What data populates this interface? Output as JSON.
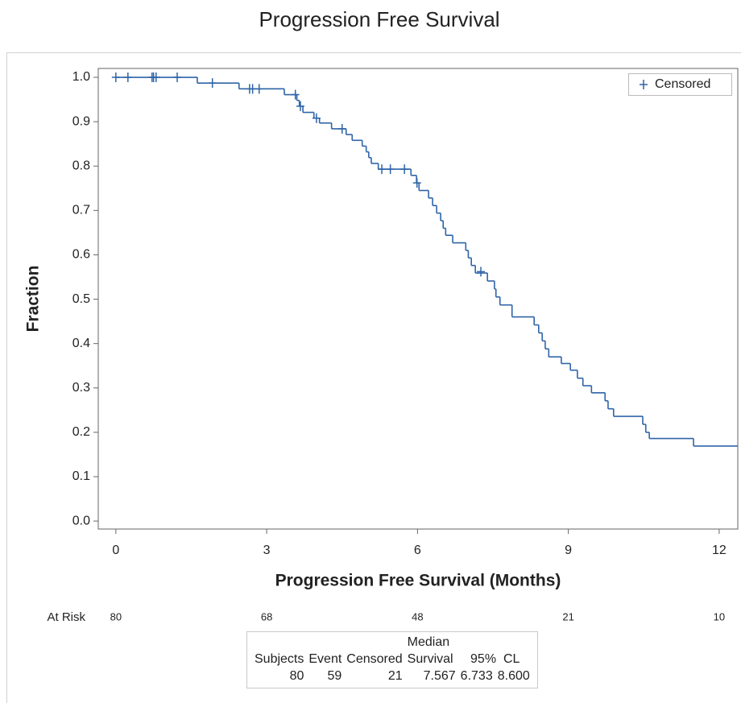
{
  "chart_data": {
    "type": "survival",
    "title": "Progression Free Survival",
    "xlabel": "Progression Free Survival (Months)",
    "ylabel": "Fraction",
    "color": "#2f64a8",
    "xlim": [
      -0.35,
      12.37
    ],
    "ylim": [
      -0.018,
      1.02
    ],
    "xticks": [
      0,
      3,
      6,
      9,
      12
    ],
    "yticks": [
      {
        "value": 0,
        "label": "0.0"
      },
      {
        "value": 0.1,
        "label": "0.1"
      },
      {
        "value": 0.2,
        "label": "0.2"
      },
      {
        "value": 0.3,
        "label": "0.3"
      },
      {
        "value": 0.4,
        "label": "0.4"
      },
      {
        "value": 0.5,
        "label": "0.5"
      },
      {
        "value": 0.6,
        "label": "0.6"
      },
      {
        "value": 0.7,
        "label": "0.7"
      },
      {
        "value": 0.8,
        "label": "0.8"
      },
      {
        "value": 0.9,
        "label": "0.9"
      },
      {
        "value": 1.0,
        "label": "1.0"
      }
    ],
    "x": [
      0,
      1.62,
      2.45,
      3.35,
      3.6,
      3.65,
      3.72,
      3.94,
      4.05,
      4.29,
      4.58,
      4.7,
      4.9,
      4.98,
      5.03,
      5.08,
      5.22,
      5.87,
      5.98,
      6.03,
      6.22,
      6.3,
      6.38,
      6.46,
      6.51,
      6.56,
      6.7,
      6.96,
      7.01,
      7.07,
      7.15,
      7.39,
      7.53,
      7.56,
      7.64,
      7.88,
      8.32,
      8.41,
      8.48,
      8.54,
      8.61,
      8.86,
      9.04,
      9.18,
      9.29,
      9.46,
      9.73,
      9.79,
      9.9,
      10.48,
      10.54,
      10.61,
      11.49
    ],
    "values": [
      1.0,
      0.987,
      0.974,
      0.961,
      0.948,
      0.935,
      0.921,
      0.908,
      0.897,
      0.884,
      0.871,
      0.858,
      0.845,
      0.832,
      0.819,
      0.806,
      0.793,
      0.779,
      0.762,
      0.745,
      0.728,
      0.711,
      0.694,
      0.677,
      0.66,
      0.644,
      0.627,
      0.61,
      0.593,
      0.576,
      0.559,
      0.541,
      0.523,
      0.505,
      0.487,
      0.46,
      0.442,
      0.424,
      0.406,
      0.388,
      0.37,
      0.355,
      0.34,
      0.322,
      0.305,
      0.289,
      0.271,
      0.253,
      0.236,
      0.218,
      0.2,
      0.186,
      0.169
    ],
    "censored": {
      "name": "Censored",
      "x": [
        0,
        0.24,
        0.72,
        0.75,
        0.8,
        1.22,
        1.92,
        2.66,
        2.72,
        2.85,
        3.57,
        3.67,
        3.99,
        4.5,
        5.29,
        5.46,
        5.74,
        5.99,
        7.26
      ],
      "values": [
        1.0,
        1.0,
        1.0,
        1.0,
        1.0,
        1.0,
        0.987,
        0.974,
        0.974,
        0.974,
        0.961,
        0.935,
        0.908,
        0.884,
        0.793,
        0.793,
        0.793,
        0.762,
        0.562
      ]
    },
    "legend": "upper right",
    "at_risk": {
      "label": "At Risk",
      "x": [
        0,
        3,
        6,
        9,
        12
      ],
      "values": [
        80,
        68,
        48,
        21,
        10
      ]
    },
    "summary_table": {
      "headers": [
        "Subjects",
        "Event",
        "Censored",
        "Median Survival",
        "95%  CL"
      ],
      "row": [
        "80",
        "59",
        "21",
        "7.567",
        "6.733",
        "8.600"
      ]
    }
  }
}
